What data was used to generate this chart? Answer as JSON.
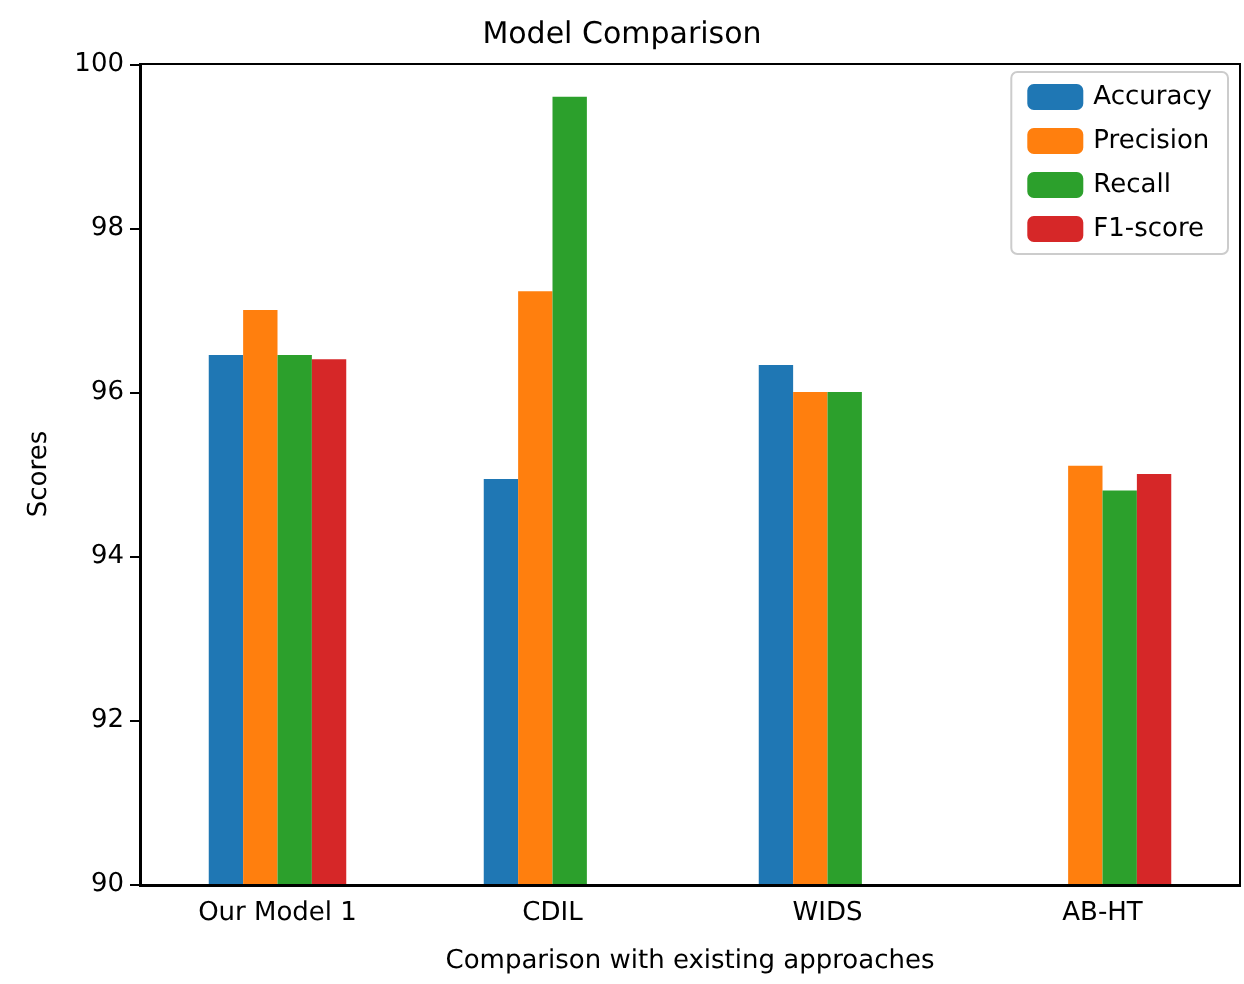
{
  "chart_data": {
    "type": "bar",
    "title": "Model Comparison",
    "xlabel": "Comparison with existing approaches",
    "ylabel": "Scores",
    "categories": [
      "Our Model 1",
      "CDIL",
      "WIDS",
      "AB-HT"
    ],
    "series": [
      {
        "name": "Accuracy",
        "color": "#1f77b4",
        "values": [
          96.45,
          94.94,
          96.33,
          null
        ]
      },
      {
        "name": "Precision",
        "color": "#ff7f0e",
        "values": [
          97.0,
          97.23,
          96.0,
          95.1
        ]
      },
      {
        "name": "Recall",
        "color": "#2ca02c",
        "values": [
          96.45,
          99.6,
          96.0,
          94.8
        ]
      },
      {
        "name": "F1-score",
        "color": "#d62728",
        "values": [
          96.4,
          null,
          null,
          95.0
        ]
      }
    ],
    "ylim": [
      90,
      100
    ],
    "yticks": [
      90,
      92,
      94,
      96,
      98,
      100
    ],
    "grid": false,
    "legend": "top right"
  }
}
